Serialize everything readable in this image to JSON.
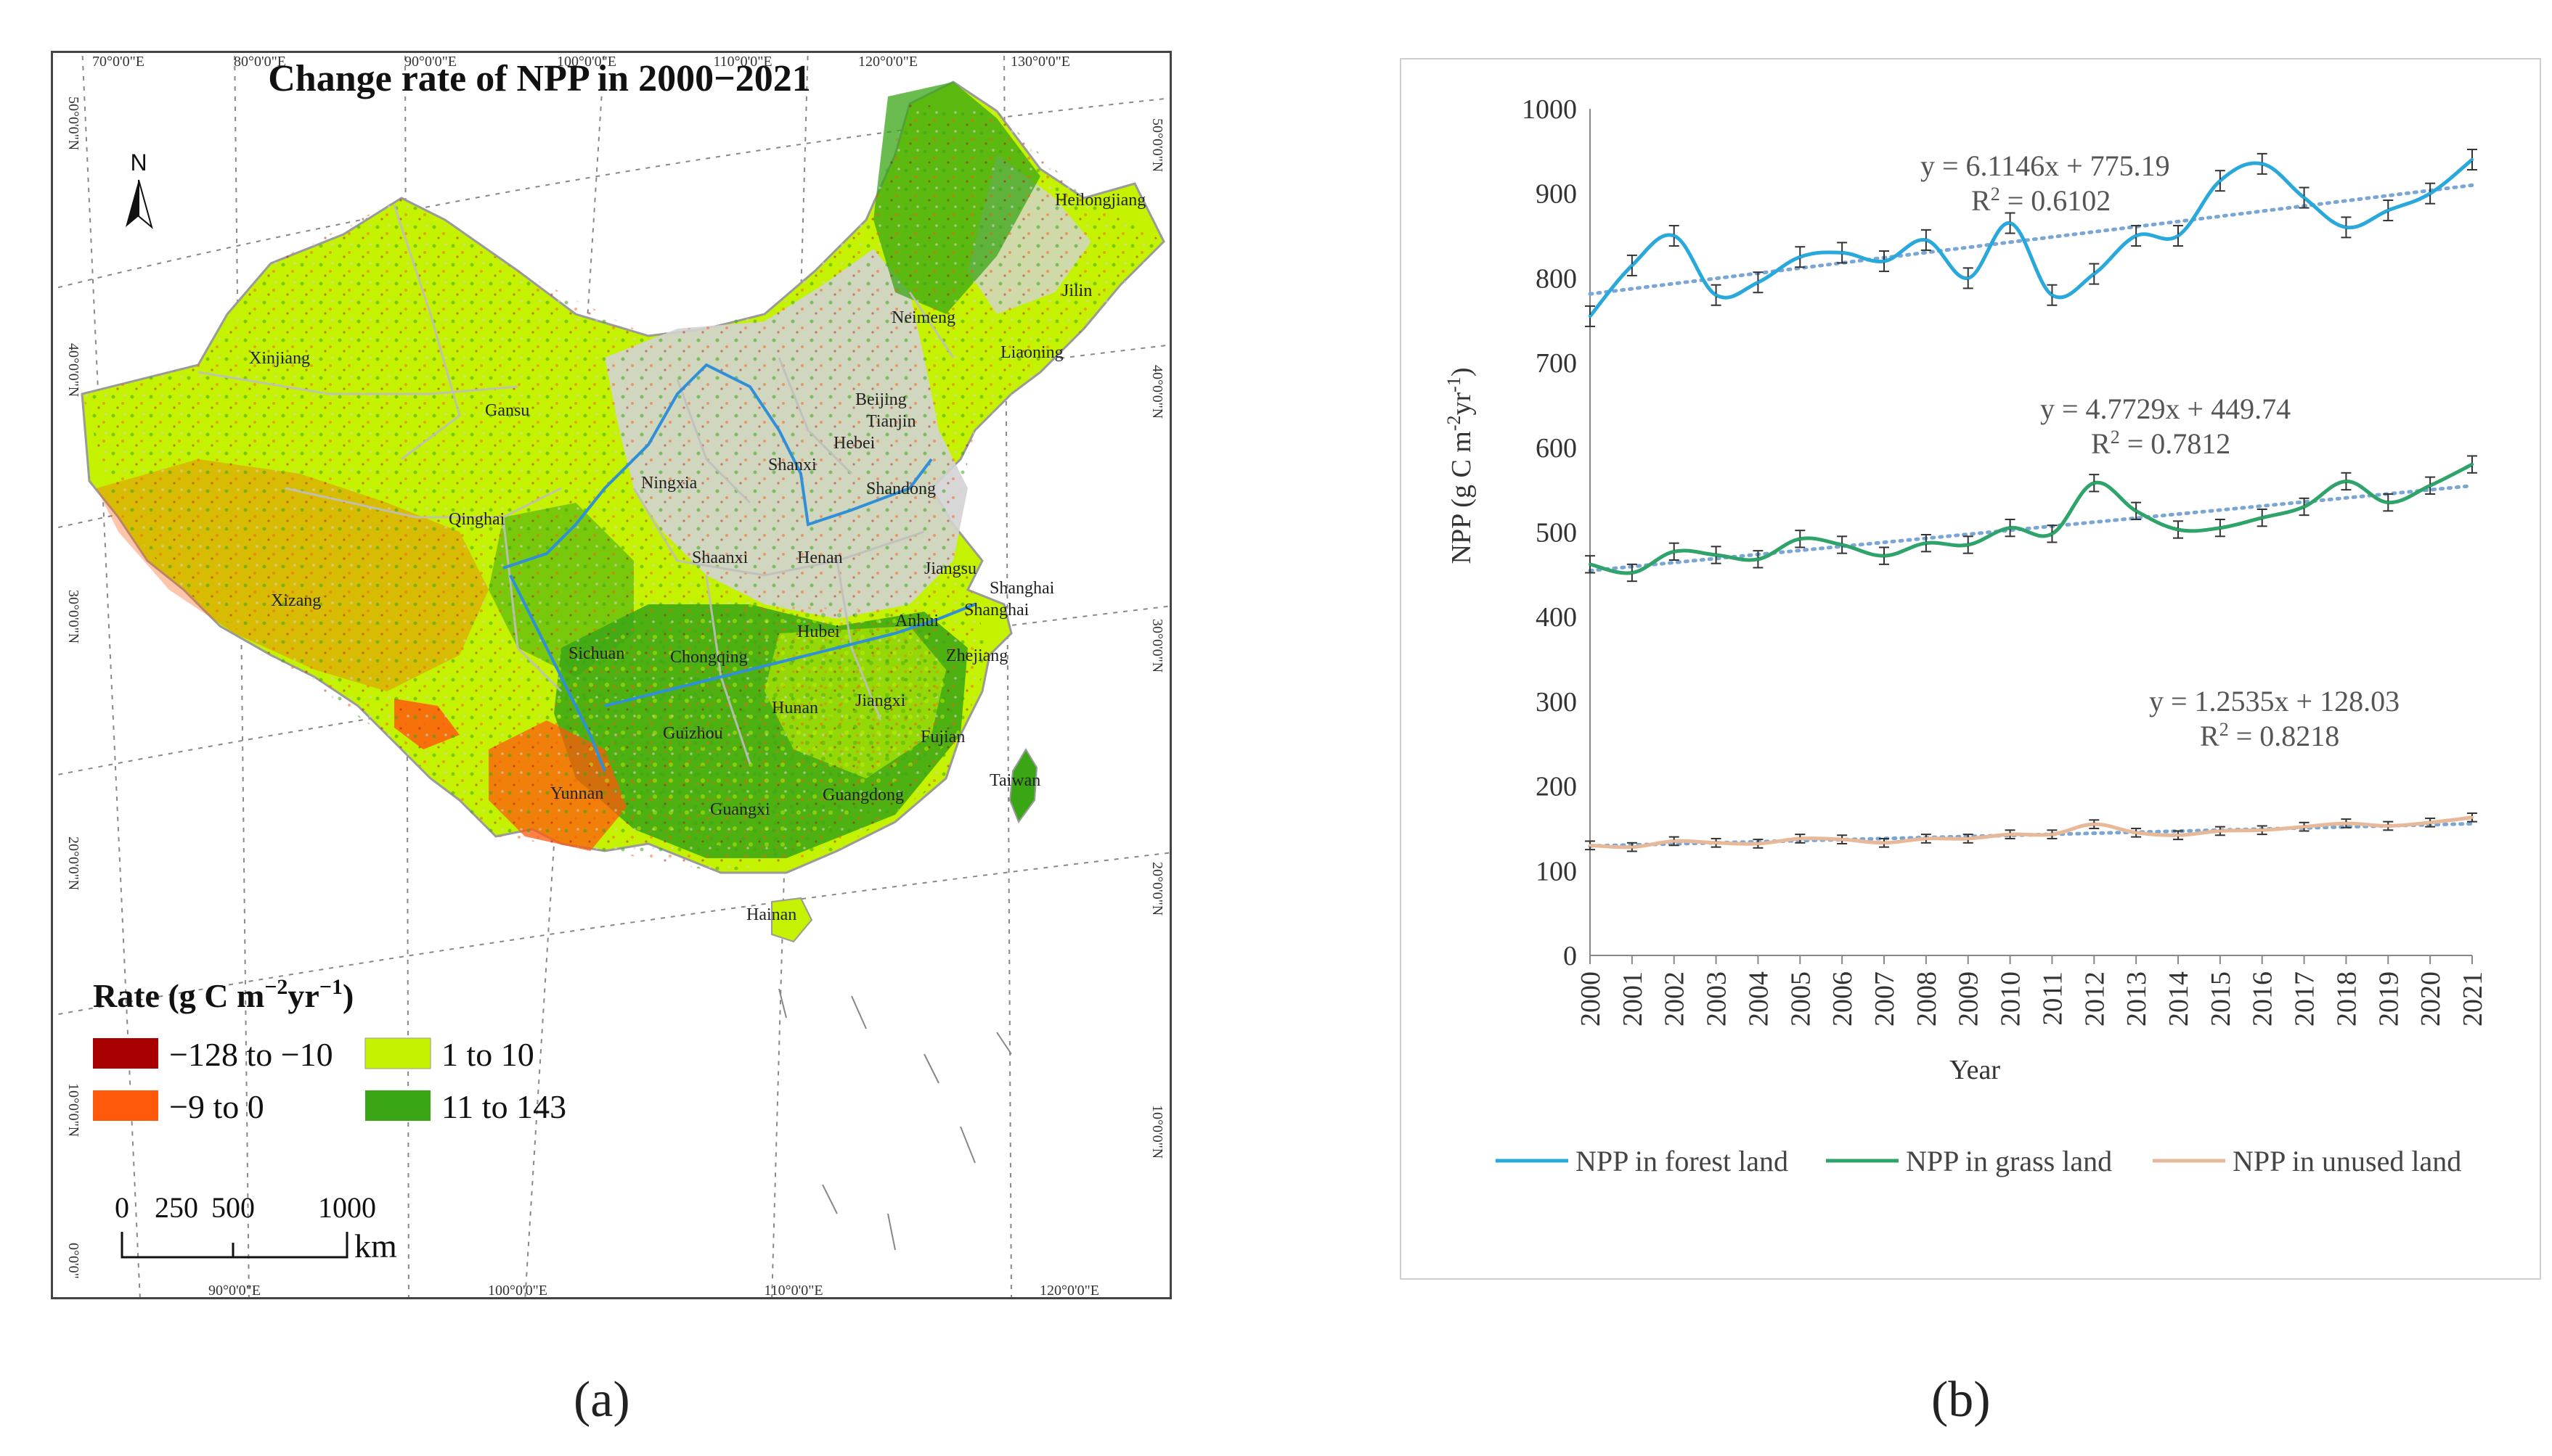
{
  "colors": {
    "forest": "#29a8db",
    "grass": "#2ea36a",
    "unused": "#e7b999",
    "trend": "#7aa6d6",
    "map_dark_red": "#a80000",
    "map_orange": "#ff5a0c",
    "map_light_green": "#c4f200",
    "map_green": "#3aa615",
    "map_gray": "#d3d3d3"
  },
  "map": {
    "title": "Change rate of NPP  in 2000−2021",
    "north_label": "N",
    "top_lon": [
      "70°0'0\"E",
      "80°0'0\"E",
      "90°0'0\"E",
      "100°0'0\"E",
      "110°0'0\"E",
      "120°0'0\"E",
      "130°0'0\"E"
    ],
    "bottom_lon": [
      "90°0'0\"E",
      "100°0'0\"E",
      "110°0'0\"E",
      "120°0'0\"E"
    ],
    "left_lat": [
      "50°0'0\"N",
      "40°0'0\"N",
      "30°0'0\"N",
      "20°0'0\"N",
      "10°0'0\"N",
      "0°0'0\""
    ],
    "right_lat": [
      "50°0'0\"N",
      "40°0'0\"N",
      "30°0'0\"N",
      "20°0'0\"N",
      "10°0'0\"N"
    ],
    "provinces": [
      "Heilongjiang",
      "Jilin",
      "Neimeng",
      "Liaoning",
      "Xinjiang",
      "Gansu",
      "Beijing",
      "Tianjin",
      "Hebei",
      "Shanxi",
      "Shandong",
      "Ningxia",
      "Qinghai",
      "Shaanxi",
      "Henan",
      "Jiangsu",
      "Shanghai",
      "Shanghai",
      "Xizang",
      "Sichuan",
      "Chongqing",
      "Hubei",
      "Anhui",
      "Zhejiang",
      "Hunan",
      "Jiangxi",
      "Fujian",
      "Guizhou",
      "Yunnan",
      "Guangxi",
      "Guangdong",
      "Taiwan",
      "Hainan"
    ],
    "legend": {
      "title_main": "Rate (g C m",
      "title_sup1": "−2",
      "title_mid": "yr",
      "title_sup2": "−1",
      "title_end": ")",
      "items": [
        {
          "label": "−128 to −10",
          "color": "#a80000"
        },
        {
          "label": "1 to 10",
          "color": "#c4f200"
        },
        {
          "label": "−9 to  0",
          "color": "#ff5a0c"
        },
        {
          "label": "11 to 143",
          "color": "#3aa615"
        }
      ]
    },
    "scale": {
      "labels": [
        "0",
        "250",
        "500",
        "1000"
      ],
      "unit": "km"
    }
  },
  "panel_labels": {
    "a": "(a)",
    "b": "(b)"
  },
  "chart_data": {
    "type": "line",
    "title": "",
    "xlabel": "Year",
    "ylabel_main": "NPP (g C m",
    "ylabel_sup1": "-2",
    "ylabel_mid": "yr",
    "ylabel_sup2": "-1",
    "ylabel_end": ")",
    "ylim": [
      0,
      1000
    ],
    "yticks": [
      0,
      100,
      200,
      300,
      400,
      500,
      600,
      700,
      800,
      900,
      1000
    ],
    "categories": [
      "2000",
      "2001",
      "2002",
      "2003",
      "2004",
      "2005",
      "2006",
      "2007",
      "2008",
      "2009",
      "2010",
      "2011",
      "2012",
      "2013",
      "2014",
      "2015",
      "2016",
      "2017",
      "2018",
      "2019",
      "2020",
      "2021"
    ],
    "series": [
      {
        "name": "NPP in forest land",
        "color": "#29a8db",
        "values": [
          755,
          815,
          850,
          780,
          795,
          825,
          830,
          820,
          845,
          800,
          865,
          780,
          805,
          850,
          850,
          915,
          935,
          895,
          860,
          880,
          900,
          940
        ],
        "error": 12,
        "trend": {
          "equation": "y = 6.1146x + 775.19",
          "r2_label": "R",
          "r2_sup": "2",
          "r2_value": " = 0.6102",
          "slope": 6.1146,
          "intercept": 775.19
        }
      },
      {
        "name": "NPP in grass land",
        "color": "#2ea36a",
        "values": [
          462,
          452,
          477,
          473,
          468,
          492,
          485,
          472,
          487,
          485,
          505,
          498,
          558,
          525,
          503,
          505,
          517,
          530,
          560,
          535,
          555,
          580
        ],
        "error": 10,
        "trend": {
          "equation": "y = 4.7729x + 449.74",
          "r2_label": "R",
          "r2_sup": "2",
          "r2_value": " = 0.7812",
          "slope": 4.7729,
          "intercept": 449.74
        }
      },
      {
        "name": "NPP in unused land",
        "color": "#e7b999",
        "values": [
          130,
          128,
          135,
          133,
          132,
          138,
          137,
          133,
          138,
          138,
          143,
          143,
          155,
          145,
          142,
          147,
          148,
          152,
          156,
          153,
          157,
          163
        ],
        "error": 5,
        "trend": {
          "equation": "y = 1.2535x + 128.03",
          "r2_label": "R",
          "r2_sup": "2",
          "r2_value": " = 0.8218",
          "slope": 1.2535,
          "intercept": 128.03
        }
      }
    ]
  }
}
